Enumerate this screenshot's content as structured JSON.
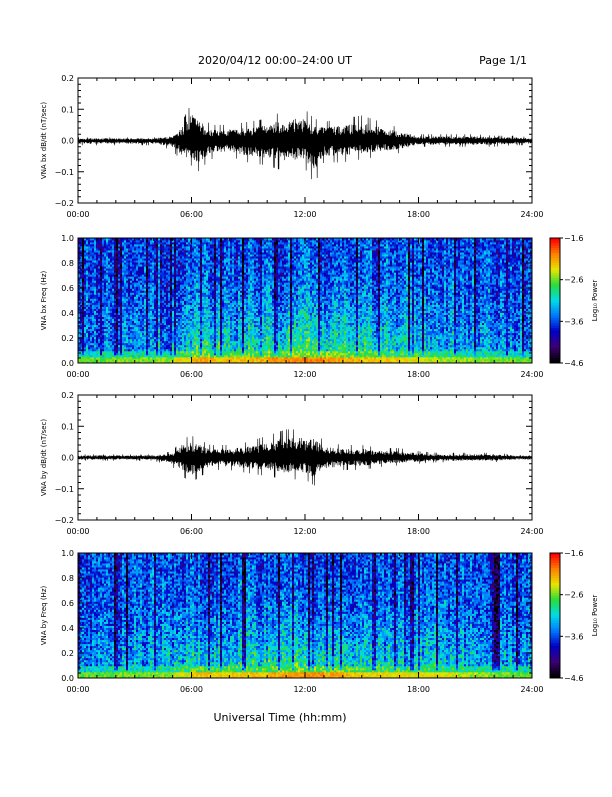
{
  "header": {
    "title": "2020/04/12  00:00–24:00 UT",
    "page": "Page 1/1"
  },
  "footer": {
    "xlabel": "Universal Time (hh:mm)"
  },
  "chart_data": [
    {
      "type": "line",
      "ylabel": "VNA bx dB/dt (nT/sec)",
      "xlabel": "",
      "x_tick_labels": [
        "00:00",
        "06:00",
        "12:00",
        "18:00",
        "24:00"
      ],
      "xlim": [
        0,
        24
      ],
      "y_tick_labels": [
        "0.2",
        "0.1",
        "0.0",
        "−0.1",
        "−0.2"
      ],
      "ylim": [
        -0.2,
        0.2
      ],
      "series": [
        {
          "x": [
            0,
            1,
            2,
            3,
            4,
            5,
            5.5,
            6,
            7,
            8,
            9,
            10,
            11,
            12,
            12.5,
            13,
            14,
            15,
            16,
            17,
            18,
            19,
            20,
            21,
            22,
            23,
            24
          ],
          "envelope_max": [
            0.01,
            0.01,
            0.01,
            0.01,
            0.01,
            0.02,
            0.06,
            0.12,
            0.05,
            0.05,
            0.06,
            0.07,
            0.1,
            0.1,
            0.07,
            0.06,
            0.07,
            0.08,
            0.06,
            0.04,
            0.02,
            0.02,
            0.02,
            0.02,
            0.015,
            0.015,
            0.01
          ],
          "envelope_min": [
            -0.015,
            -0.015,
            -0.015,
            -0.015,
            -0.015,
            -0.03,
            -0.07,
            -0.12,
            -0.06,
            -0.05,
            -0.07,
            -0.08,
            -0.1,
            -0.09,
            -0.14,
            -0.07,
            -0.07,
            -0.06,
            -0.05,
            -0.04,
            -0.02,
            -0.02,
            -0.02,
            -0.02,
            -0.02,
            -0.015,
            -0.015
          ]
        }
      ]
    },
    {
      "type": "heatmap",
      "ylabel": "VNA bx Freq (Hz)",
      "x_tick_labels": [
        "00:00",
        "06:00",
        "12:00",
        "18:00",
        "24:00"
      ],
      "xlim": [
        0,
        24
      ],
      "y_tick_labels": [
        "1.0",
        "0.8",
        "0.6",
        "0.4",
        "0.2",
        "0.0"
      ],
      "ylim": [
        0,
        1
      ],
      "colorbar": {
        "label": "Log₁₀ Power",
        "tick_labels": [
          "−1.6",
          "−2.6",
          "−3.6",
          "−4.6"
        ],
        "range": [
          -4.6,
          -1.6
        ]
      },
      "band_activity_by_hour": [
        0.3,
        0.3,
        0.35,
        0.35,
        0.4,
        0.6,
        0.8,
        0.7,
        0.7,
        0.75,
        0.85,
        0.9,
        0.9,
        0.85,
        0.75,
        0.7,
        0.65,
        0.6,
        0.5,
        0.45,
        0.4,
        0.35,
        0.35,
        0.3
      ]
    },
    {
      "type": "line",
      "ylabel": "VNA by dB/dt (nT/sec)",
      "xlabel": "",
      "x_tick_labels": [
        "00:00",
        "06:00",
        "12:00",
        "18:00",
        "24:00"
      ],
      "xlim": [
        0,
        24
      ],
      "y_tick_labels": [
        "0.2",
        "0.1",
        "0.0",
        "−0.1",
        "−0.2"
      ],
      "ylim": [
        -0.2,
        0.2
      ],
      "series": [
        {
          "x": [
            0,
            1,
            2,
            3,
            4,
            5,
            5.5,
            6,
            7,
            8,
            9,
            10,
            11,
            12,
            12.5,
            13,
            14,
            15,
            16,
            17,
            18,
            19,
            20,
            21,
            22,
            23,
            24
          ],
          "envelope_max": [
            0.01,
            0.01,
            0.01,
            0.01,
            0.01,
            0.02,
            0.06,
            0.07,
            0.04,
            0.04,
            0.05,
            0.07,
            0.09,
            0.09,
            0.09,
            0.05,
            0.04,
            0.04,
            0.03,
            0.03,
            0.02,
            0.015,
            0.015,
            0.015,
            0.015,
            0.01,
            0.01
          ],
          "envelope_min": [
            -0.01,
            -0.01,
            -0.01,
            -0.01,
            -0.01,
            -0.03,
            -0.06,
            -0.08,
            -0.04,
            -0.04,
            -0.05,
            -0.06,
            -0.07,
            -0.07,
            -0.09,
            -0.05,
            -0.04,
            -0.04,
            -0.03,
            -0.025,
            -0.02,
            -0.015,
            -0.015,
            -0.015,
            -0.015,
            -0.01,
            -0.01
          ]
        }
      ]
    },
    {
      "type": "heatmap",
      "ylabel": "VNA by Freq (Hz)",
      "x_tick_labels": [
        "00:00",
        "06:00",
        "12:00",
        "18:00",
        "24:00"
      ],
      "xlim": [
        0,
        24
      ],
      "y_tick_labels": [
        "1.0",
        "0.8",
        "0.6",
        "0.4",
        "0.2",
        "0.0"
      ],
      "ylim": [
        0,
        1
      ],
      "colorbar": {
        "label": "Log₁₀ Power",
        "tick_labels": [
          "−1.6",
          "−2.6",
          "−3.6",
          "−4.6"
        ],
        "range": [
          -4.6,
          -1.6
        ]
      },
      "band_activity_by_hour": [
        0.3,
        0.3,
        0.35,
        0.35,
        0.4,
        0.55,
        0.7,
        0.65,
        0.65,
        0.7,
        0.8,
        0.85,
        0.85,
        0.8,
        0.7,
        0.65,
        0.6,
        0.6,
        0.6,
        0.55,
        0.45,
        0.4,
        0.35,
        0.3
      ]
    }
  ]
}
